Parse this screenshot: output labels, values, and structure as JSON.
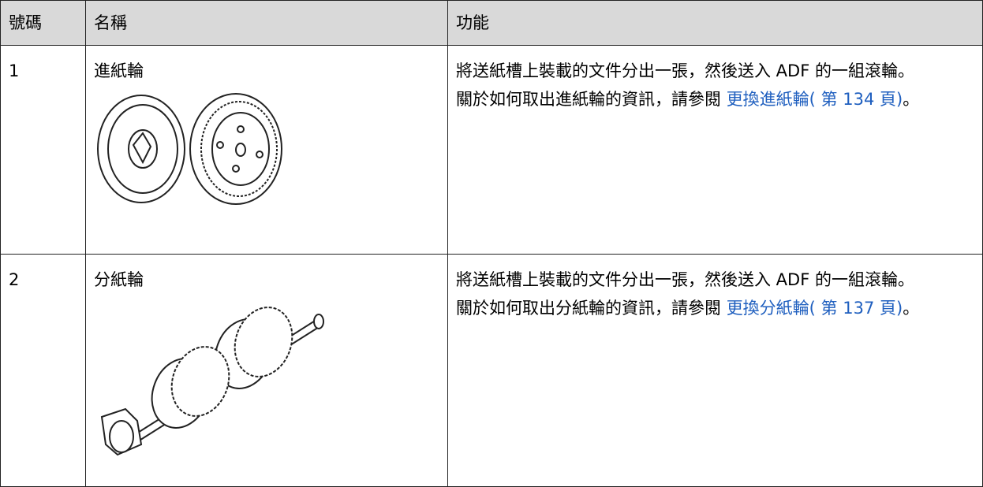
{
  "table": {
    "header": [
      "號碼",
      "名稱",
      "功能"
    ],
    "rows": [
      {
        "number": "1",
        "name": "進紙輪",
        "description": "將送紙槽上裝載的文件分出一張，然後送入 ADF 的一組滾輪。",
        "reference_prefix": "關於如何取出進紙輪的資訊，請參閱",
        "link": "更換進紙輪( 第 134 頁)",
        "reference_suffix": "。"
      },
      {
        "number": "2",
        "name": "分紙輪",
        "description": "將送紙槽上裝載的文件分出一張，然後送入 ADF 的一組滾輪。",
        "reference_prefix": "關於如何取出分紙輪的資訊，請參閱",
        "link": "更換分紙輪( 第 137 頁)",
        "reference_suffix": "。"
      }
    ]
  }
}
